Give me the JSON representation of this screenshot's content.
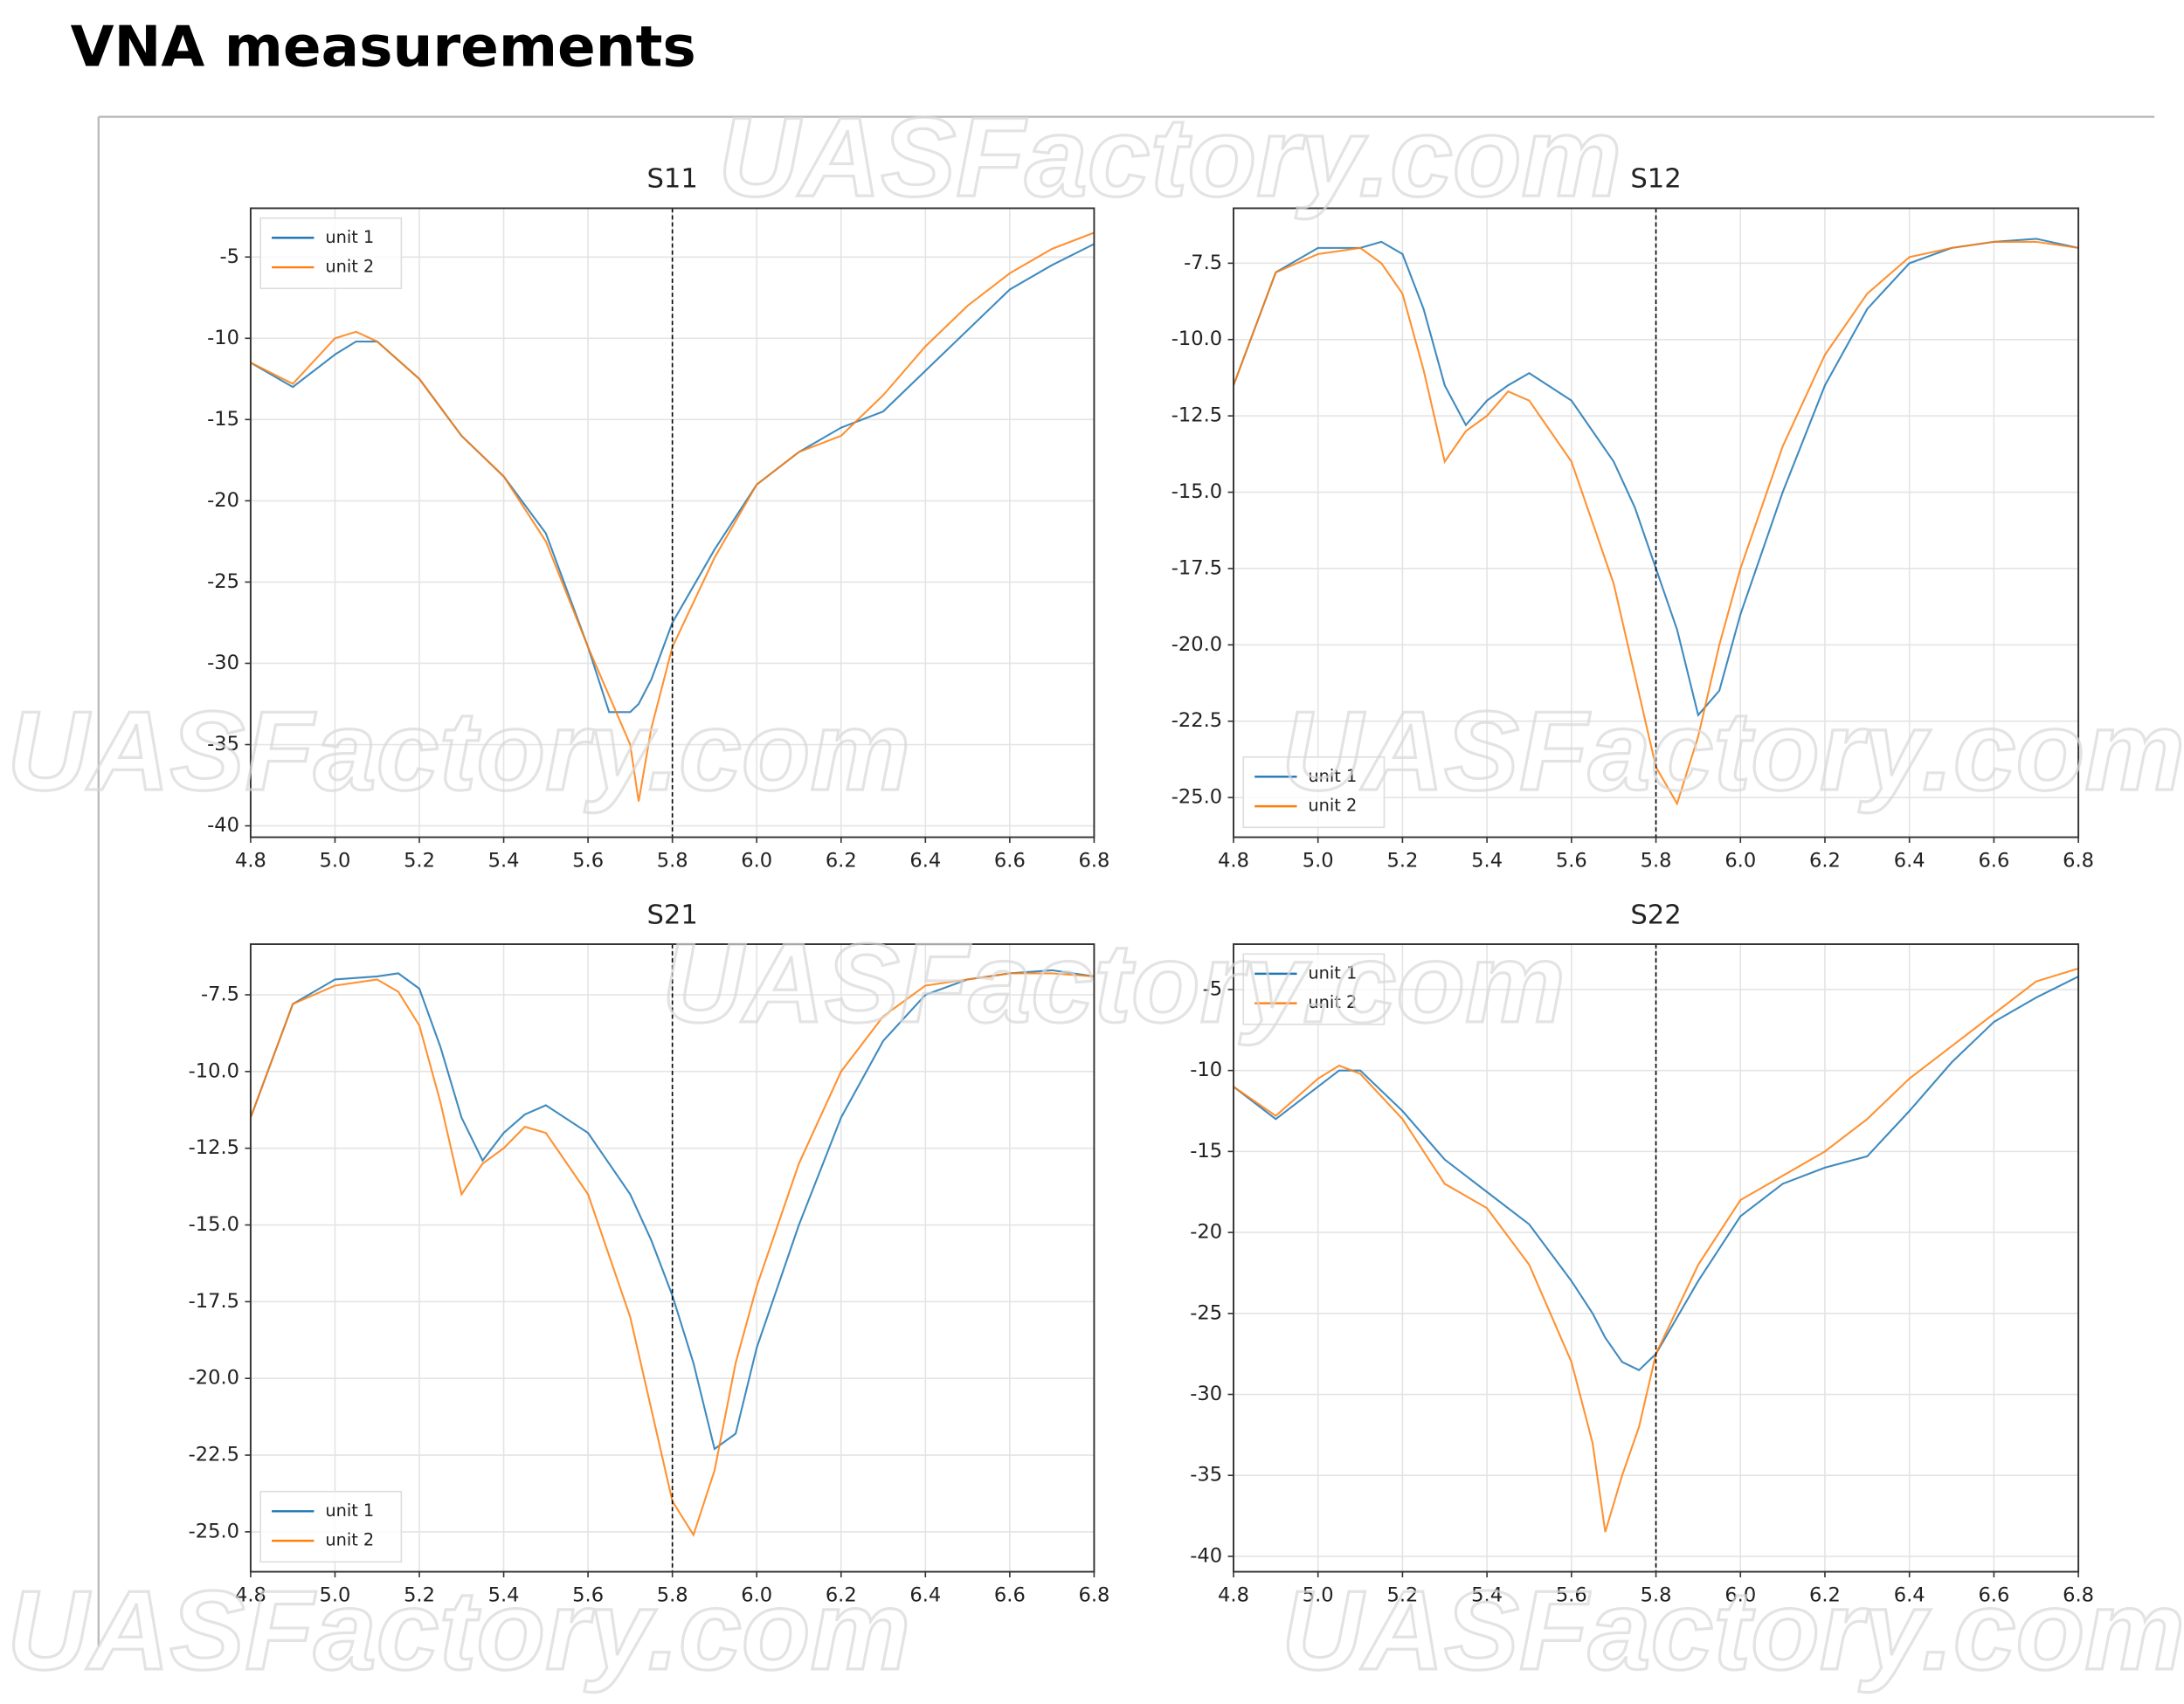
{
  "title": "VNA measurements",
  "watermark": "UASFactory.com",
  "chart_data": [
    {
      "type": "line",
      "title": "S11",
      "legend": "upper left",
      "grid": true,
      "vline": 5.8,
      "x": [
        4.8,
        4.9,
        5.0,
        5.05,
        5.1,
        5.2,
        5.3,
        5.4,
        5.5,
        5.6,
        5.65,
        5.7,
        5.72,
        5.75,
        5.8,
        5.9,
        6.0,
        6.1,
        6.2,
        6.3,
        6.4,
        6.5,
        6.6,
        6.7,
        6.8
      ],
      "series": [
        {
          "name": "unit 1",
          "color": "#1f77b4",
          "values": [
            -11.5,
            -13,
            -11,
            -10.2,
            -10.2,
            -12.5,
            -16,
            -18.5,
            -22,
            -29,
            -33,
            -33,
            -32.5,
            -31,
            -27.5,
            -23,
            -19,
            -17,
            -15.5,
            -14.5,
            -12,
            -9.5,
            -7,
            -5.5,
            -4.2
          ]
        },
        {
          "name": "unit 2",
          "color": "#ff7f0e",
          "values": [
            -11.5,
            -12.8,
            -10,
            -9.6,
            -10.2,
            -12.5,
            -16,
            -18.5,
            -22.5,
            -29,
            -32,
            -35,
            -38.5,
            -34,
            -29,
            -23.5,
            -19,
            -17,
            -16,
            -13.5,
            -10.5,
            -8,
            -6,
            -4.5,
            -3.5
          ]
        }
      ],
      "xlim": [
        4.8,
        6.8
      ],
      "ylim": [
        -40.7,
        -2
      ],
      "xticks": [
        4.8,
        {
          "value": 5,
          "label": "5.0"
        },
        5.2,
        5.4,
        5.6,
        5.8,
        {
          "value": 6,
          "label": "6.0"
        },
        6.2,
        6.4,
        6.6,
        6.8
      ],
      "yticks": [
        -40,
        -35,
        -30,
        -25,
        -20,
        -15,
        -10,
        -5
      ]
    },
    {
      "type": "line",
      "title": "S12",
      "legend": "lower left",
      "grid": true,
      "vline": 5.8,
      "x": [
        4.8,
        4.9,
        5.0,
        5.1,
        5.15,
        5.2,
        5.25,
        5.3,
        5.35,
        5.4,
        5.45,
        5.5,
        5.6,
        5.7,
        5.75,
        5.8,
        5.85,
        5.9,
        5.95,
        6.0,
        6.1,
        6.2,
        6.3,
        6.4,
        6.5,
        6.6,
        6.7,
        6.8
      ],
      "series": [
        {
          "name": "unit 1",
          "color": "#1f77b4",
          "values": [
            -11.5,
            -7.8,
            -7,
            -7,
            -6.8,
            -7.2,
            -9,
            -11.5,
            -12.8,
            -12,
            -11.5,
            -11.1,
            -12,
            -14,
            -15.5,
            -17.5,
            -19.5,
            -22.3,
            -21.5,
            -19,
            -15,
            -11.5,
            -9,
            -7.5,
            -7,
            -6.8,
            -6.7,
            -7
          ]
        },
        {
          "name": "unit 2",
          "color": "#ff7f0e",
          "values": [
            -11.5,
            -7.8,
            -7.2,
            -7,
            -7.5,
            -8.5,
            -11,
            -14,
            -13,
            -12.5,
            -11.7,
            -12,
            -14,
            -18,
            -21,
            -24,
            -25.2,
            -23,
            -20,
            -17.5,
            -13.5,
            -10.5,
            -8.5,
            -7.3,
            -7,
            -6.8,
            -6.8,
            -7
          ]
        }
      ],
      "xlim": [
        4.8,
        6.8
      ],
      "ylim": [
        -26.3,
        -5.7
      ],
      "xticks": [
        4.8,
        {
          "value": 5,
          "label": "5.0"
        },
        5.2,
        5.4,
        5.6,
        5.8,
        {
          "value": 6,
          "label": "6.0"
        },
        6.2,
        6.4,
        6.6,
        6.8
      ],
      "yticks": [
        {
          "value": -25,
          "label": "-25.0"
        },
        -22.5,
        {
          "value": -20,
          "label": "-20.0"
        },
        -17.5,
        {
          "value": -15,
          "label": "-15.0"
        },
        -12.5,
        {
          "value": -10,
          "label": "-10.0"
        },
        -7.5
      ]
    },
    {
      "type": "line",
      "title": "S21",
      "legend": "lower left",
      "grid": true,
      "vline": 5.8,
      "x": [
        4.8,
        4.9,
        5.0,
        5.1,
        5.15,
        5.2,
        5.25,
        5.3,
        5.35,
        5.4,
        5.45,
        5.5,
        5.6,
        5.7,
        5.75,
        5.8,
        5.85,
        5.9,
        5.95,
        6.0,
        6.1,
        6.2,
        6.3,
        6.4,
        6.5,
        6.6,
        6.7,
        6.8
      ],
      "series": [
        {
          "name": "unit 1",
          "color": "#1f77b4",
          "values": [
            -11.5,
            -7.8,
            -7,
            -6.9,
            -6.8,
            -7.3,
            -9.2,
            -11.5,
            -12.9,
            -12,
            -11.4,
            -11.1,
            -12,
            -14,
            -15.5,
            -17.3,
            -19.5,
            -22.3,
            -21.8,
            -19,
            -15,
            -11.5,
            -9,
            -7.5,
            -7,
            -6.8,
            -6.7,
            -6.9
          ]
        },
        {
          "name": "unit 2",
          "color": "#ff7f0e",
          "values": [
            -11.5,
            -7.8,
            -7.2,
            -7,
            -7.4,
            -8.5,
            -11,
            -14,
            -13,
            -12.5,
            -11.8,
            -12,
            -14,
            -18,
            -21,
            -24,
            -25.1,
            -23,
            -19.5,
            -17,
            -13,
            -10,
            -8.2,
            -7.2,
            -7,
            -6.8,
            -6.8,
            -6.9
          ]
        }
      ],
      "xlim": [
        4.8,
        6.8
      ],
      "ylim": [
        -26.3,
        -5.85
      ],
      "xticks": [
        4.8,
        {
          "value": 5,
          "label": "5.0"
        },
        5.2,
        5.4,
        5.6,
        5.8,
        {
          "value": 6,
          "label": "6.0"
        },
        6.2,
        6.4,
        6.6,
        6.8
      ],
      "yticks": [
        {
          "value": -25,
          "label": "-25.0"
        },
        -22.5,
        {
          "value": -20,
          "label": "-20.0"
        },
        -17.5,
        {
          "value": -15,
          "label": "-15.0"
        },
        -12.5,
        {
          "value": -10,
          "label": "-10.0"
        },
        -7.5
      ]
    },
    {
      "type": "line",
      "title": "S22",
      "legend": "upper left",
      "grid": true,
      "vline": 5.8,
      "x": [
        4.8,
        4.9,
        5.0,
        5.05,
        5.1,
        5.2,
        5.3,
        5.4,
        5.5,
        5.6,
        5.65,
        5.68,
        5.72,
        5.76,
        5.8,
        5.9,
        6.0,
        6.1,
        6.2,
        6.3,
        6.4,
        6.5,
        6.6,
        6.7,
        6.8
      ],
      "series": [
        {
          "name": "unit 1",
          "color": "#1f77b4",
          "values": [
            -11,
            -13,
            -11,
            -10,
            -10,
            -12.5,
            -15.5,
            -17.5,
            -19.5,
            -23,
            -25,
            -26.5,
            -28,
            -28.5,
            -27.5,
            -23,
            -19,
            -17,
            -16,
            -15.3,
            -12.5,
            -9.5,
            -7,
            -5.5,
            -4.2
          ]
        },
        {
          "name": "unit 2",
          "color": "#ff7f0e",
          "values": [
            -11,
            -12.8,
            -10.5,
            -9.7,
            -10.2,
            -13,
            -17,
            -18.5,
            -22,
            -28,
            -33,
            -38.5,
            -35,
            -32,
            -27.5,
            -22,
            -18,
            -16.5,
            -15,
            -13,
            -10.5,
            -8.5,
            -6.5,
            -4.5,
            -3.7
          ]
        }
      ],
      "xlim": [
        4.8,
        6.8
      ],
      "ylim": [
        -40.95,
        -2.2
      ],
      "xticks": [
        4.8,
        {
          "value": 5,
          "label": "5.0"
        },
        5.2,
        5.4,
        5.6,
        5.8,
        {
          "value": 6,
          "label": "6.0"
        },
        6.2,
        6.4,
        6.6,
        6.8
      ],
      "yticks": [
        -40,
        -35,
        -30,
        -25,
        -20,
        -15,
        -10,
        -5
      ]
    }
  ]
}
